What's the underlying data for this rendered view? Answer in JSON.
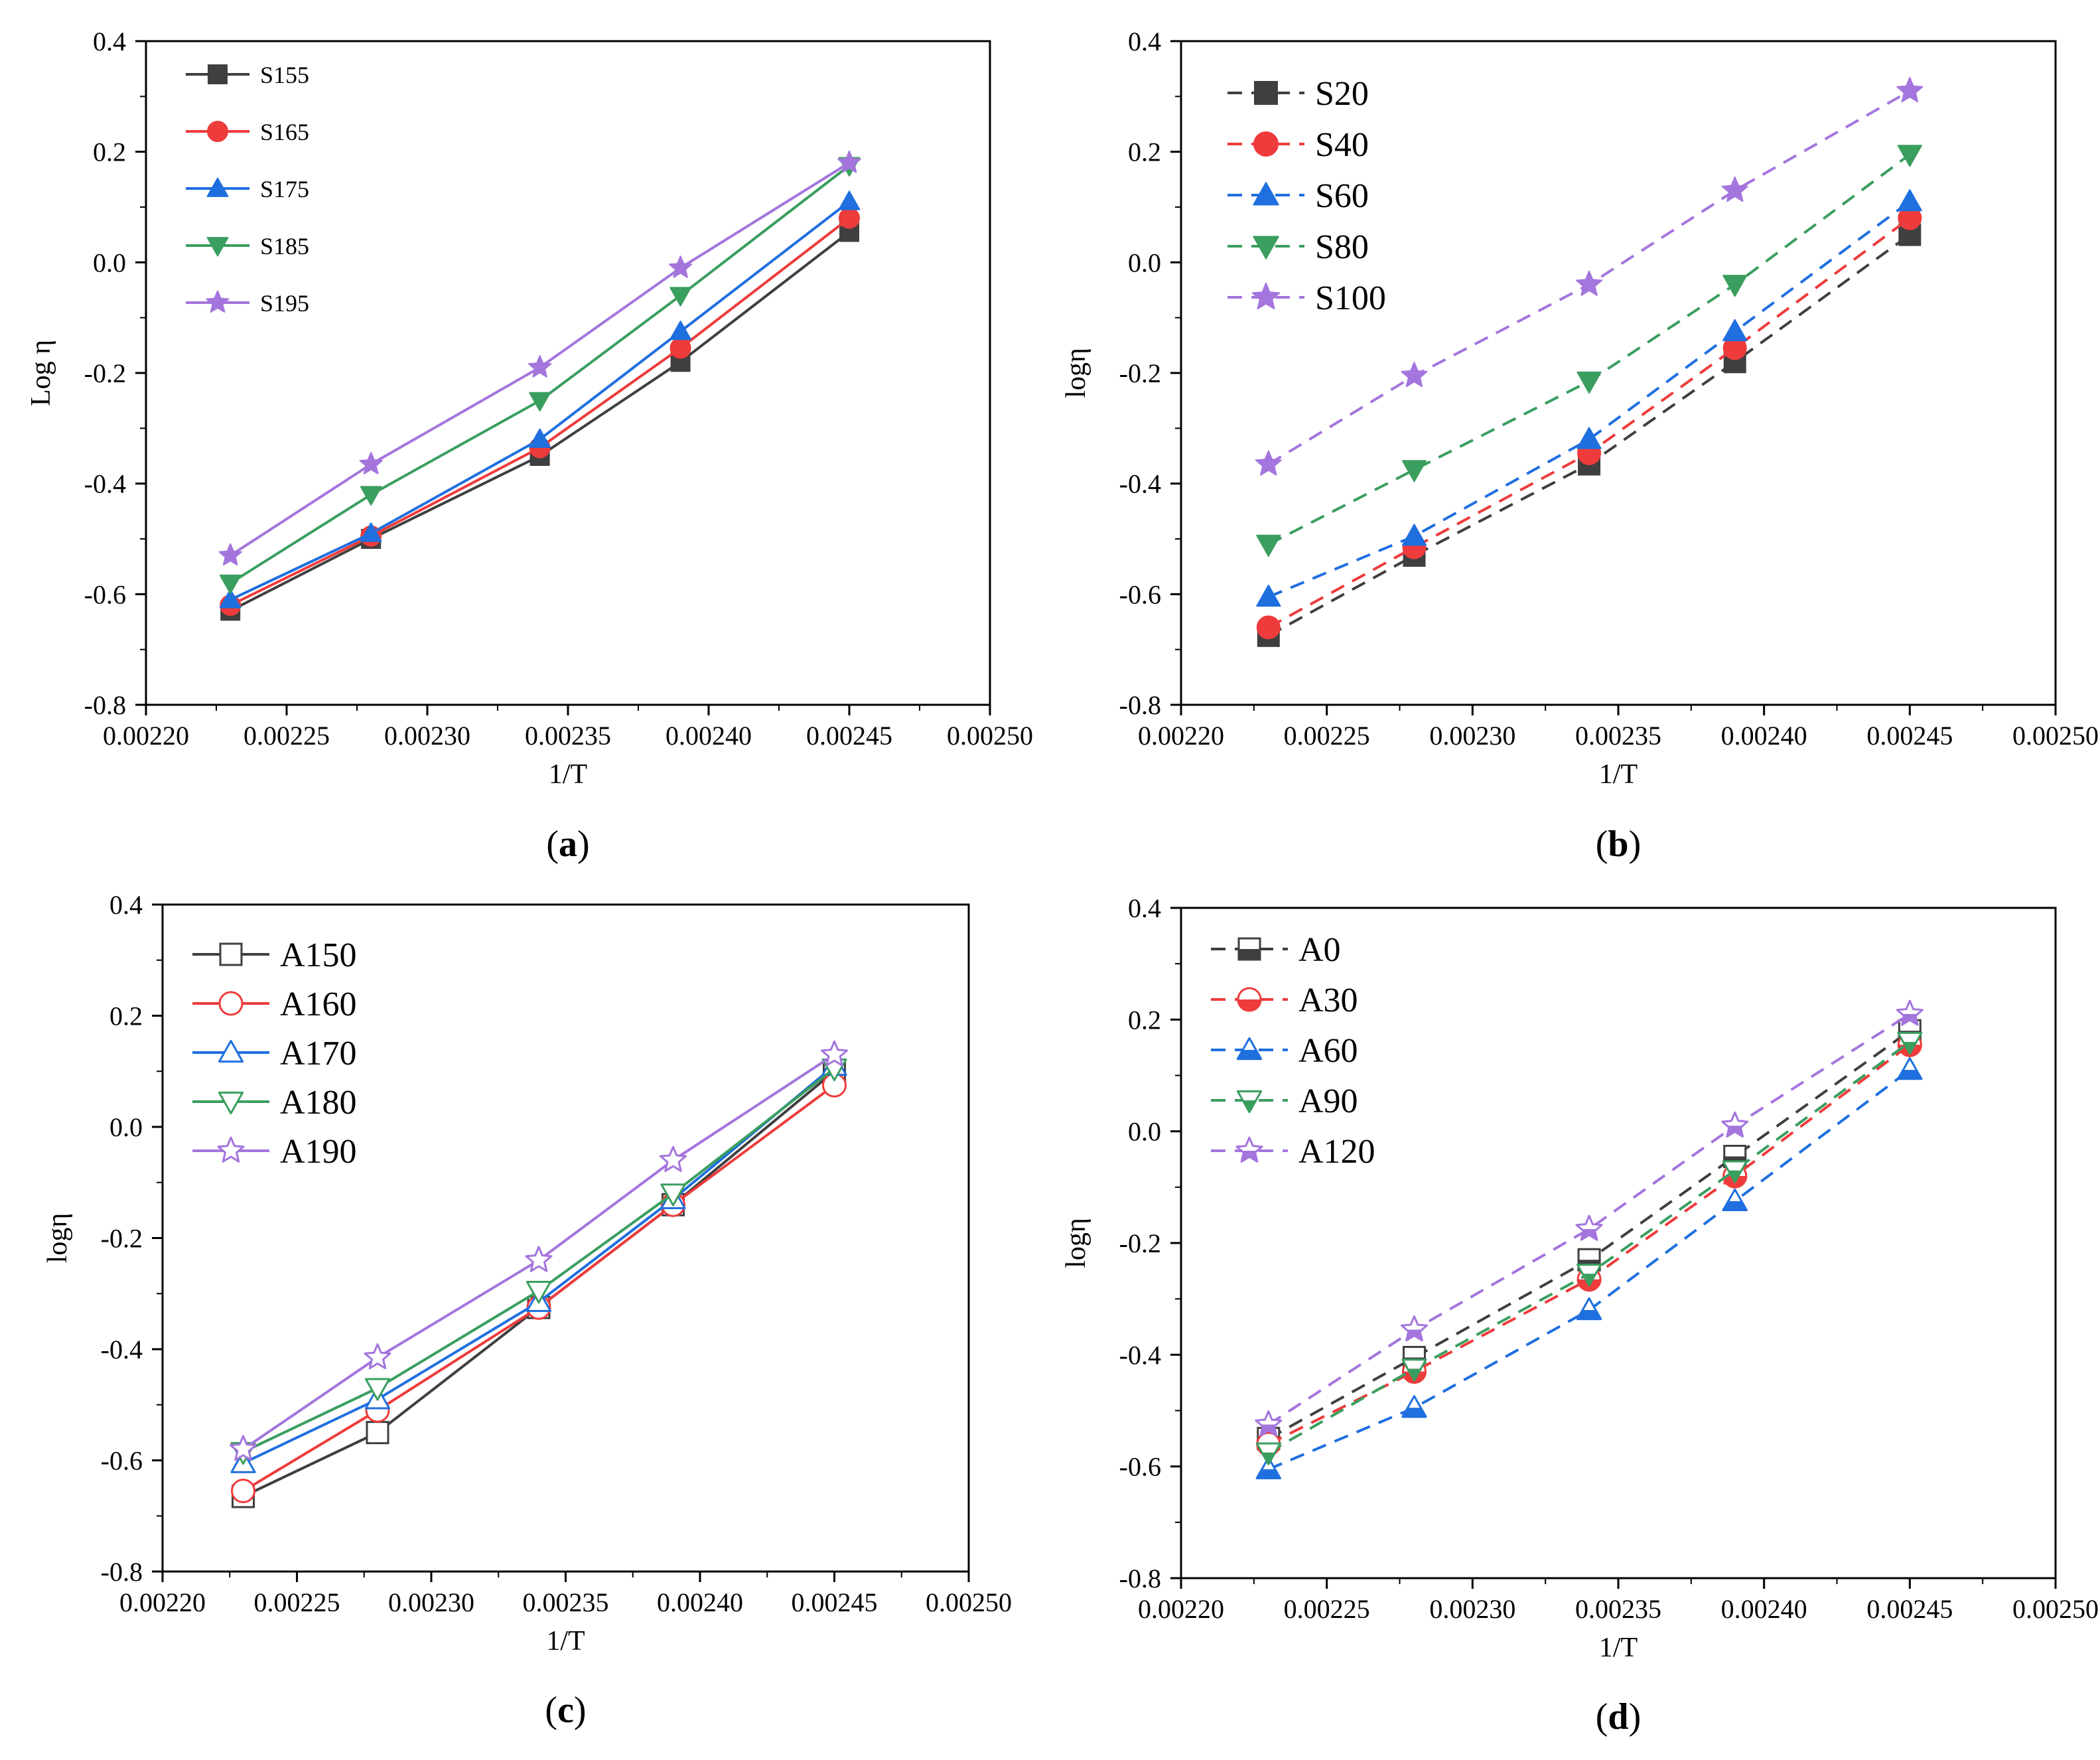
{
  "chart_data": [
    {
      "type": "line",
      "panel": "a",
      "caption": {
        "open": "(",
        "letter": "a",
        "close": ")"
      },
      "xlabel": "1/T",
      "ylabel": "Log η",
      "xlim": [
        0.0022,
        0.0025
      ],
      "ylim": [
        -0.8,
        0.4
      ],
      "xticks": [
        "0.00220",
        "0.00225",
        "0.00230",
        "0.00235",
        "0.00240",
        "0.00245",
        "0.00250"
      ],
      "yticks": [
        "-0.8",
        "-0.6",
        "-0.4",
        "-0.2",
        "0.0",
        "0.2",
        "0.4"
      ],
      "legend_position": "top-left",
      "legend_size": "small",
      "line_style": "solid",
      "x": [
        0.00223,
        0.00228,
        0.00234,
        0.00239,
        0.00245
      ],
      "series": [
        {
          "name": "S155",
          "color": "#3f3f3f",
          "marker": "square",
          "filled": true,
          "values": [
            -0.63,
            -0.5,
            -0.35,
            -0.18,
            0.055
          ]
        },
        {
          "name": "S165",
          "color": "#ee3b3b",
          "marker": "circle",
          "filled": true,
          "values": [
            -0.62,
            -0.495,
            -0.335,
            -0.155,
            0.08
          ]
        },
        {
          "name": "S175",
          "color": "#1f6fdf",
          "marker": "triangle-up",
          "filled": true,
          "values": [
            -0.61,
            -0.49,
            -0.32,
            -0.125,
            0.11
          ]
        },
        {
          "name": "S185",
          "color": "#3a9e5f",
          "marker": "triangle-down",
          "filled": true,
          "values": [
            -0.58,
            -0.42,
            -0.25,
            -0.06,
            0.175
          ]
        },
        {
          "name": "S195",
          "color": "#a475dd",
          "marker": "star",
          "filled": true,
          "values": [
            -0.53,
            -0.365,
            -0.19,
            -0.01,
            0.18
          ]
        }
      ]
    },
    {
      "type": "line",
      "panel": "b",
      "caption": {
        "open": "(",
        "letter": "b",
        "close": ")"
      },
      "xlabel": "1/T",
      "ylabel": "logη",
      "xlim": [
        0.0022,
        0.0025
      ],
      "ylim": [
        -0.8,
        0.4
      ],
      "xticks": [
        "0.00220",
        "0.00225",
        "0.00230",
        "0.00235",
        "0.00240",
        "0.00245",
        "0.00250"
      ],
      "yticks": [
        "-0.8",
        "-0.6",
        "-0.4",
        "-0.2",
        "0.0",
        "0.2",
        "0.4"
      ],
      "legend_position": "top-left",
      "legend_size": "large",
      "line_style": "dashed",
      "x": [
        0.00223,
        0.00228,
        0.00234,
        0.00239,
        0.00245
      ],
      "series": [
        {
          "name": "S20",
          "color": "#3f3f3f",
          "marker": "square",
          "filled": true,
          "values": [
            -0.675,
            -0.53,
            -0.365,
            -0.18,
            0.05
          ]
        },
        {
          "name": "S40",
          "color": "#ee3b3b",
          "marker": "circle",
          "filled": true,
          "values": [
            -0.66,
            -0.515,
            -0.345,
            -0.155,
            0.08
          ]
        },
        {
          "name": "S60",
          "color": "#1f6fdf",
          "marker": "triangle-up",
          "filled": true,
          "values": [
            -0.605,
            -0.495,
            -0.32,
            -0.125,
            0.11
          ]
        },
        {
          "name": "S80",
          "color": "#3a9e5f",
          "marker": "triangle-down",
          "filled": true,
          "values": [
            -0.51,
            -0.375,
            -0.215,
            -0.04,
            0.195
          ]
        },
        {
          "name": "S100",
          "color": "#a475dd",
          "marker": "star",
          "filled": true,
          "values": [
            -0.365,
            -0.205,
            -0.04,
            0.13,
            0.31
          ]
        }
      ]
    },
    {
      "type": "line",
      "panel": "c",
      "caption": {
        "open": "(",
        "letter": "c",
        "close": ")"
      },
      "xlabel": "1/T",
      "ylabel": "logη",
      "xlim": [
        0.0022,
        0.0025
      ],
      "ylim": [
        -0.8,
        0.4
      ],
      "xticks": [
        "0.00220",
        "0.00225",
        "0.00230",
        "0.00235",
        "0.00240",
        "0.00245",
        "0.00250"
      ],
      "yticks": [
        "-0.8",
        "-0.6",
        "-0.4",
        "-0.2",
        "0.0",
        "0.2",
        "0.4"
      ],
      "legend_position": "top-left",
      "legend_size": "large",
      "line_style": "solid",
      "x": [
        0.00223,
        0.00228,
        0.00234,
        0.00239,
        0.00245
      ],
      "series": [
        {
          "name": "A150",
          "color": "#3f3f3f",
          "marker": "square",
          "filled": false,
          "values": [
            -0.665,
            -0.55,
            -0.325,
            -0.14,
            0.1
          ]
        },
        {
          "name": "A160",
          "color": "#ee3b3b",
          "marker": "circle",
          "filled": false,
          "values": [
            -0.655,
            -0.51,
            -0.325,
            -0.14,
            0.075
          ]
        },
        {
          "name": "A170",
          "color": "#1f6fdf",
          "marker": "triangle-up",
          "filled": false,
          "values": [
            -0.605,
            -0.49,
            -0.315,
            -0.13,
            0.11
          ]
        },
        {
          "name": "A180",
          "color": "#3a9e5f",
          "marker": "triangle-down",
          "filled": false,
          "values": [
            -0.585,
            -0.47,
            -0.295,
            -0.12,
            0.105
          ]
        },
        {
          "name": "A190",
          "color": "#a475dd",
          "marker": "star",
          "filled": false,
          "values": [
            -0.58,
            -0.415,
            -0.24,
            -0.06,
            0.13
          ]
        }
      ]
    },
    {
      "type": "line",
      "panel": "d",
      "caption": {
        "open": "(",
        "letter": "d",
        "close": ")"
      },
      "xlabel": "1/T",
      "ylabel": "logη",
      "xlim": [
        0.0022,
        0.0025
      ],
      "ylim": [
        -0.8,
        0.4
      ],
      "xticks": [
        "0.00220",
        "0.00225",
        "0.00230",
        "0.00235",
        "0.00240",
        "0.00245",
        "0.00250"
      ],
      "yticks": [
        "-0.8",
        "-0.6",
        "-0.4",
        "-0.2",
        "0.0",
        "0.2",
        "0.4"
      ],
      "legend_position": "top-left",
      "legend_size": "large",
      "line_style": "dashed",
      "x": [
        0.00223,
        0.00228,
        0.00234,
        0.00239,
        0.00245
      ],
      "series": [
        {
          "name": "A0",
          "color": "#3f3f3f",
          "marker": "square",
          "filled": false,
          "half_filled": true,
          "values": [
            -0.55,
            -0.405,
            -0.23,
            -0.045,
            0.18
          ]
        },
        {
          "name": "A30",
          "color": "#ee3b3b",
          "marker": "circle",
          "filled": false,
          "half_filled": true,
          "values": [
            -0.56,
            -0.43,
            -0.265,
            -0.08,
            0.155
          ]
        },
        {
          "name": "A60",
          "color": "#1f6fdf",
          "marker": "triangle-up",
          "filled": false,
          "half_filled": true,
          "values": [
            -0.605,
            -0.495,
            -0.32,
            -0.125,
            0.11
          ]
        },
        {
          "name": "A90",
          "color": "#3a9e5f",
          "marker": "triangle-down",
          "filled": false,
          "half_filled": true,
          "values": [
            -0.575,
            -0.425,
            -0.255,
            -0.07,
            0.16
          ]
        },
        {
          "name": "A120",
          "color": "#a475dd",
          "marker": "star",
          "filled": false,
          "half_filled": true,
          "values": [
            -0.525,
            -0.355,
            -0.175,
            0.01,
            0.21
          ]
        }
      ]
    }
  ]
}
